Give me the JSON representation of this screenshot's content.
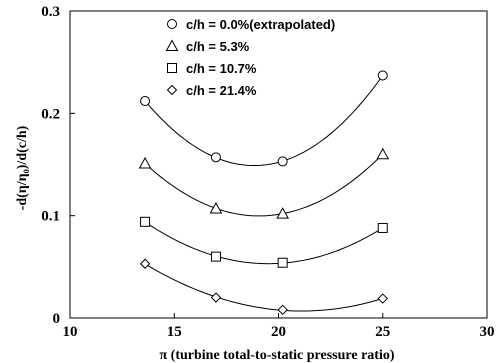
{
  "chart_data": {
    "type": "scatter",
    "title": "",
    "xlabel": "π (turbine total-to-static pressure ratio)",
    "ylabel": "-d(η/η₀)/d(c/h)",
    "xlim": [
      10,
      30
    ],
    "ylim": [
      0,
      0.3
    ],
    "xticks": [
      "10",
      "15",
      "20",
      "25",
      "30"
    ],
    "yticks": [
      "0",
      "0.1",
      "0.2",
      "0.3"
    ],
    "grid": false,
    "legend_position": "top-center",
    "series": [
      {
        "name": "c/h = 0.0%(extrapolated)",
        "marker": "circle",
        "x": [
          13.6,
          17.0,
          20.2,
          25.0
        ],
        "y": [
          0.212,
          0.157,
          0.153,
          0.237
        ],
        "fit_quadratic": true
      },
      {
        "name": "c/h = 5.3%",
        "marker": "triangle",
        "x": [
          13.6,
          17.0,
          20.2,
          25.0
        ],
        "y": [
          0.151,
          0.107,
          0.102,
          0.16
        ],
        "fit_quadratic": true
      },
      {
        "name": "c/h = 10.7%",
        "marker": "square",
        "x": [
          13.6,
          17.0,
          20.2,
          25.0
        ],
        "y": [
          0.094,
          0.06,
          0.054,
          0.088
        ],
        "fit_quadratic": true
      },
      {
        "name": "c/h = 21.4%",
        "marker": "diamond",
        "x": [
          13.6,
          17.0,
          20.2,
          25.0
        ],
        "y": [
          0.053,
          0.02,
          0.008,
          0.019
        ],
        "fit_quadratic": true
      }
    ]
  }
}
